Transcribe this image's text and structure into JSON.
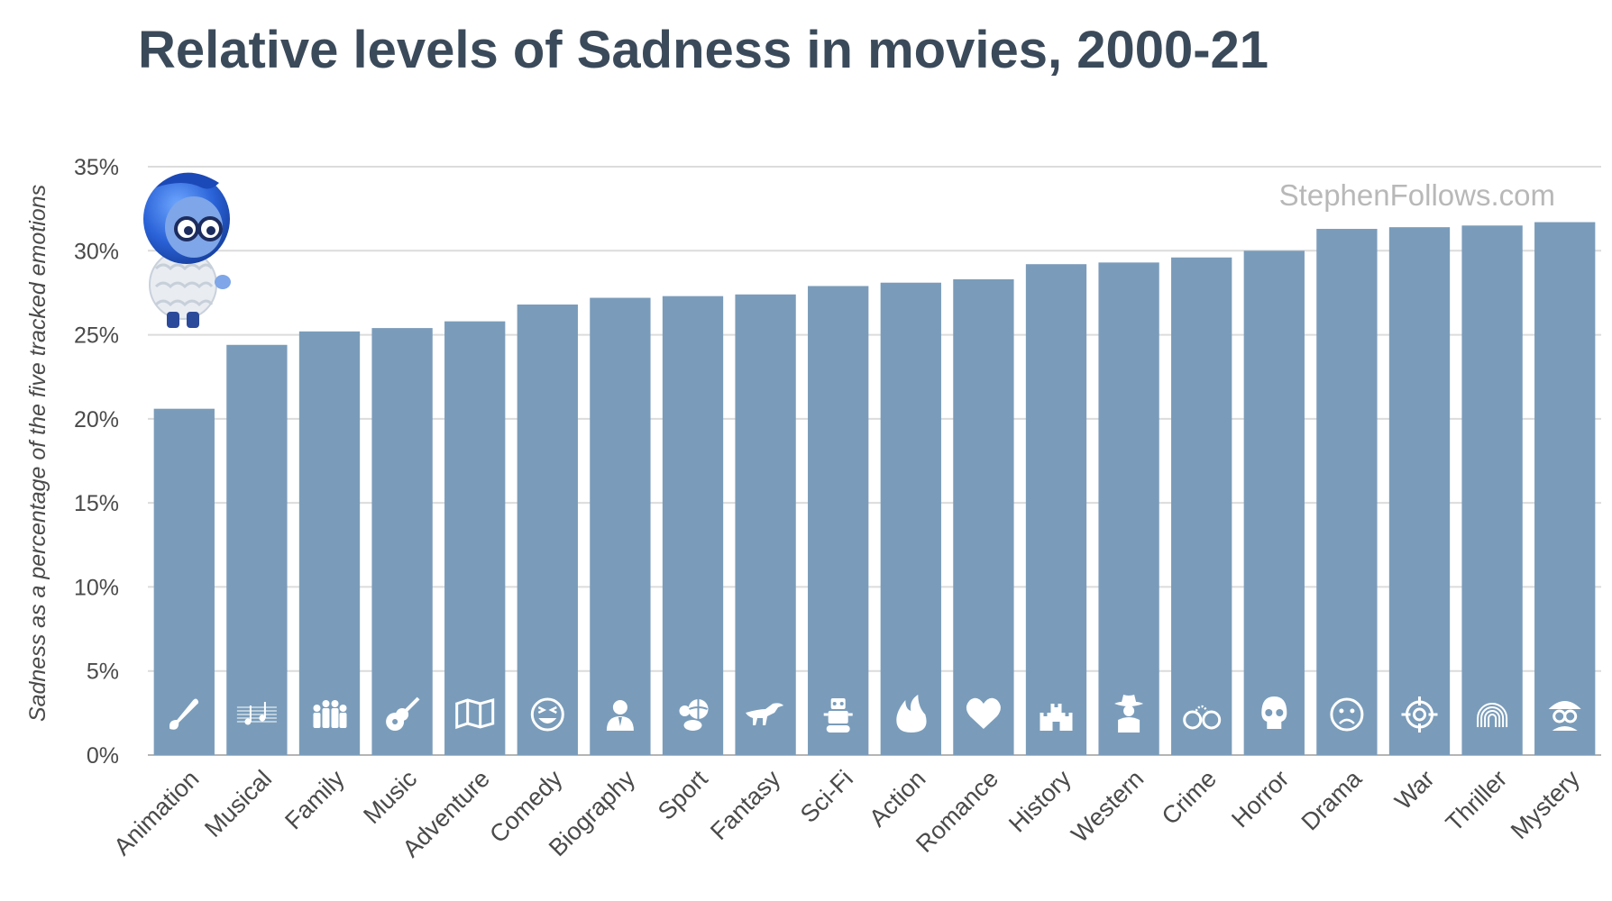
{
  "chart_data": {
    "type": "bar",
    "title": "Relative levels of Sadness in movies, 2000-21",
    "xlabel": "",
    "ylabel": "Sadness as a percentage of the five tracked emotions",
    "ylim": [
      0,
      35
    ],
    "yticks": [
      0,
      5,
      10,
      15,
      20,
      25,
      30,
      35
    ],
    "ytick_labels": [
      "0%",
      "5%",
      "10%",
      "15%",
      "20%",
      "25%",
      "30%",
      "35%"
    ],
    "grid": true,
    "bar_color": "#7a9cba",
    "watermark": "StephenFollows.com",
    "categories": [
      "Animation",
      "Musical",
      "Family",
      "Music",
      "Adventure",
      "Comedy",
      "Biography",
      "Sport",
      "Fantasy",
      "Sci-Fi",
      "Action",
      "Romance",
      "History",
      "Western",
      "Crime",
      "Horror",
      "Drama",
      "War",
      "Thriller",
      "Mystery"
    ],
    "values": [
      20.6,
      24.4,
      25.2,
      25.4,
      25.8,
      26.8,
      27.2,
      27.3,
      27.4,
      27.9,
      28.1,
      28.3,
      29.2,
      29.3,
      29.6,
      30.0,
      31.3,
      31.4,
      31.5,
      31.7
    ],
    "icons": [
      "paintbrush-icon",
      "music-notes-icon",
      "family-icon",
      "guitar-icon",
      "map-icon",
      "laughing-face-icon",
      "person-bust-icon",
      "sports-balls-icon",
      "dinosaur-icon",
      "robot-icon",
      "flame-icon",
      "heart-icon",
      "castle-icon",
      "cowboy-icon",
      "handcuffs-icon",
      "skull-icon",
      "sad-face-icon",
      "crosshair-icon",
      "fingerprint-icon",
      "detective-icon"
    ],
    "mascot": "sadness-character-icon"
  }
}
